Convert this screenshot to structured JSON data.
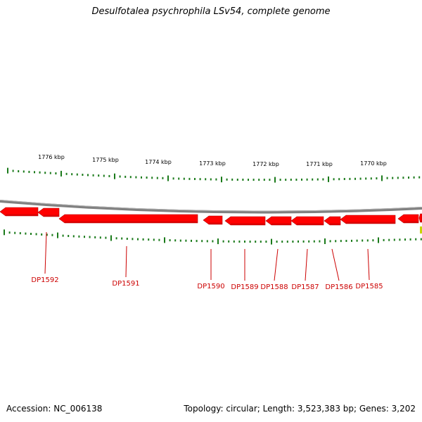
{
  "title": "Desulfotalea psychrophila LSv54, complete genome",
  "footer": {
    "accession": "Accession: NC_006138",
    "summary": "Topology: circular; Length: 3,523,383 bp; Genes: 3,202"
  },
  "colors": {
    "gene": "#ff0000",
    "gene_shadow": "#b40000",
    "backbone": "#808080",
    "tick": "#1a7a1a",
    "label": "#cc0000",
    "partial_gene": "#c8d400"
  },
  "scale_labels": [
    "1776 kbp",
    "1775 kbp",
    "1774 kbp",
    "1773 kbp",
    "1772 kbp",
    "1771 kbp",
    "1770 kbp"
  ],
  "genes": [
    {
      "name": "DP1592"
    },
    {
      "name": "DP1591"
    },
    {
      "name": "DP1590"
    },
    {
      "name": "DP1589"
    },
    {
      "name": "DP1588"
    },
    {
      "name": "DP1587"
    },
    {
      "name": "DP1586"
    },
    {
      "name": "DP1585"
    }
  ]
}
